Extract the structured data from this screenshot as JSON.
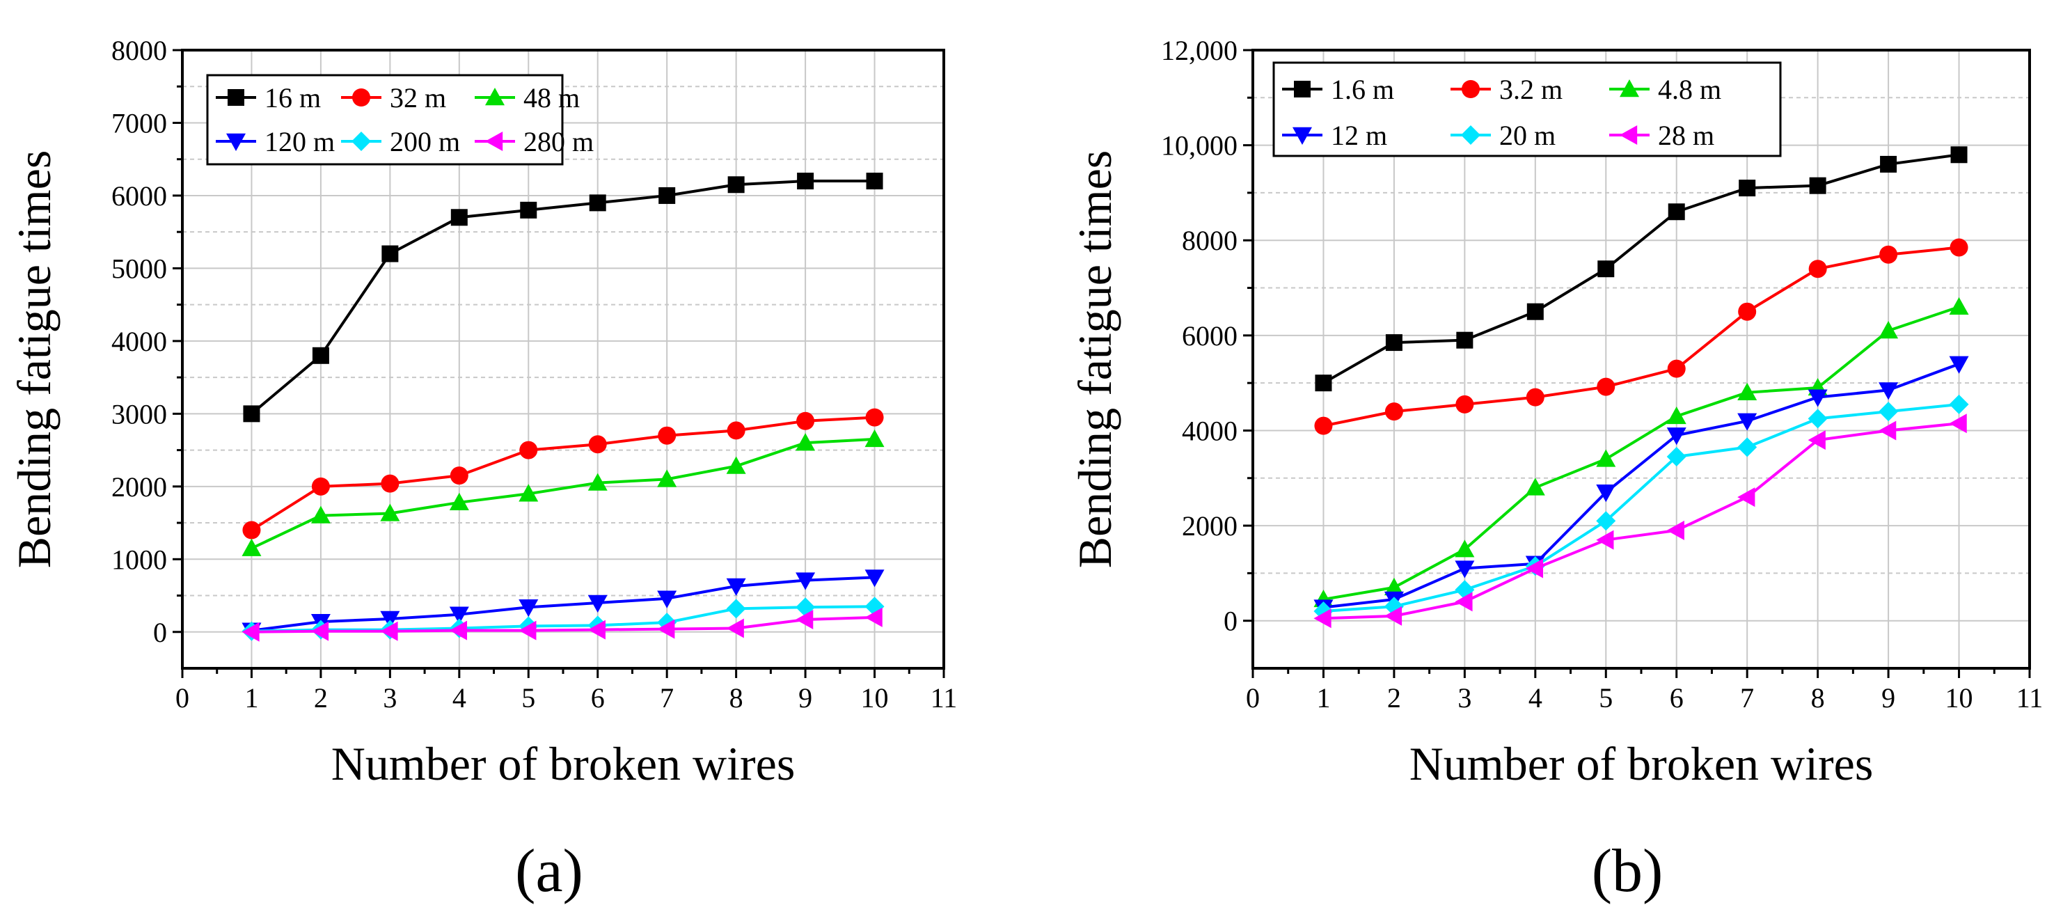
{
  "chart_data": [
    {
      "type": "line",
      "panel_label": "(a)",
      "xlabel": "Number of broken wires",
      "ylabel": "Bending fatigue times",
      "xlim": [
        0,
        11
      ],
      "ylim": [
        -500,
        8000
      ],
      "x_ticks": [
        0,
        1,
        2,
        3,
        4,
        5,
        6,
        7,
        8,
        9,
        10,
        11
      ],
      "x_tick_labels": [
        "0",
        "1",
        "2",
        "3",
        "4",
        "5",
        "6",
        "7",
        "8",
        "9",
        "10",
        "11"
      ],
      "y_ticks": [
        0,
        1000,
        2000,
        3000,
        4000,
        5000,
        6000,
        7000,
        8000
      ],
      "y_tick_labels": [
        "0",
        "1000",
        "2000",
        "3000",
        "4000",
        "5000",
        "6000",
        "7000",
        "8000"
      ],
      "grid": true,
      "legend_position": "top-left",
      "x": [
        1,
        2,
        3,
        4,
        5,
        6,
        7,
        8,
        9,
        10
      ],
      "series": [
        {
          "name": "16 m",
          "color": "#000000",
          "marker": "square",
          "values": [
            3000,
            3800,
            5200,
            5700,
            5800,
            5900,
            6000,
            6150,
            6200,
            6200
          ]
        },
        {
          "name": "32 m",
          "color": "#ff0000",
          "marker": "circle",
          "values": [
            1400,
            2000,
            2040,
            2150,
            2500,
            2580,
            2700,
            2770,
            2900,
            2950
          ]
        },
        {
          "name": "48 m",
          "color": "#00dd00",
          "marker": "triangle-up",
          "values": [
            1150,
            1600,
            1630,
            1780,
            1900,
            2050,
            2100,
            2280,
            2600,
            2650
          ]
        },
        {
          "name": "120 m",
          "color": "#0000ff",
          "marker": "triangle-down",
          "values": [
            20,
            140,
            180,
            240,
            340,
            400,
            460,
            630,
            710,
            750
          ]
        },
        {
          "name": "200 m",
          "color": "#00e5ff",
          "marker": "diamond",
          "values": [
            10,
            30,
            30,
            50,
            80,
            90,
            130,
            320,
            340,
            350
          ]
        },
        {
          "name": "280 m",
          "color": "#ff00ff",
          "marker": "triangle-left",
          "values": [
            0,
            10,
            10,
            20,
            20,
            30,
            40,
            50,
            170,
            200
          ]
        }
      ]
    },
    {
      "type": "line",
      "panel_label": "(b)",
      "xlabel": "Number of broken wires",
      "ylabel": "Bending fatigue times",
      "xlim": [
        0,
        11
      ],
      "ylim": [
        -1000,
        12000
      ],
      "x_ticks": [
        0,
        1,
        2,
        3,
        4,
        5,
        6,
        7,
        8,
        9,
        10,
        11
      ],
      "x_tick_labels": [
        "0",
        "1",
        "2",
        "3",
        "4",
        "5",
        "6",
        "7",
        "8",
        "9",
        "10",
        "11"
      ],
      "y_ticks": [
        0,
        2000,
        4000,
        6000,
        8000,
        10000,
        12000
      ],
      "y_tick_labels": [
        "0",
        "2000",
        "4000",
        "6000",
        "8000",
        "10,000",
        "12,000"
      ],
      "grid": true,
      "legend_position": "top-left",
      "x": [
        1,
        2,
        3,
        4,
        5,
        6,
        7,
        8,
        9,
        10
      ],
      "series": [
        {
          "name": "1.6 m",
          "color": "#000000",
          "marker": "square",
          "values": [
            5000,
            5850,
            5900,
            6500,
            7400,
            8600,
            9100,
            9150,
            9600,
            9800
          ]
        },
        {
          "name": "3.2 m",
          "color": "#ff0000",
          "marker": "circle",
          "values": [
            4100,
            4400,
            4550,
            4700,
            4920,
            5300,
            6500,
            7400,
            7700,
            7850
          ]
        },
        {
          "name": "4.8 m",
          "color": "#00dd00",
          "marker": "triangle-up",
          "values": [
            450,
            700,
            1500,
            2800,
            3400,
            4300,
            4800,
            4900,
            6100,
            6600
          ]
        },
        {
          "name": "12 m",
          "color": "#0000ff",
          "marker": "triangle-down",
          "values": [
            280,
            450,
            1100,
            1200,
            2700,
            3900,
            4200,
            4700,
            4850,
            5400
          ]
        },
        {
          "name": "20 m",
          "color": "#00e5ff",
          "marker": "diamond",
          "values": [
            200,
            300,
            650,
            1150,
            2100,
            3450,
            3650,
            4250,
            4400,
            4550
          ]
        },
        {
          "name": "28 m",
          "color": "#ff00ff",
          "marker": "triangle-left",
          "values": [
            50,
            100,
            400,
            1100,
            1700,
            1900,
            2600,
            3800,
            4000,
            4150
          ]
        }
      ]
    }
  ]
}
